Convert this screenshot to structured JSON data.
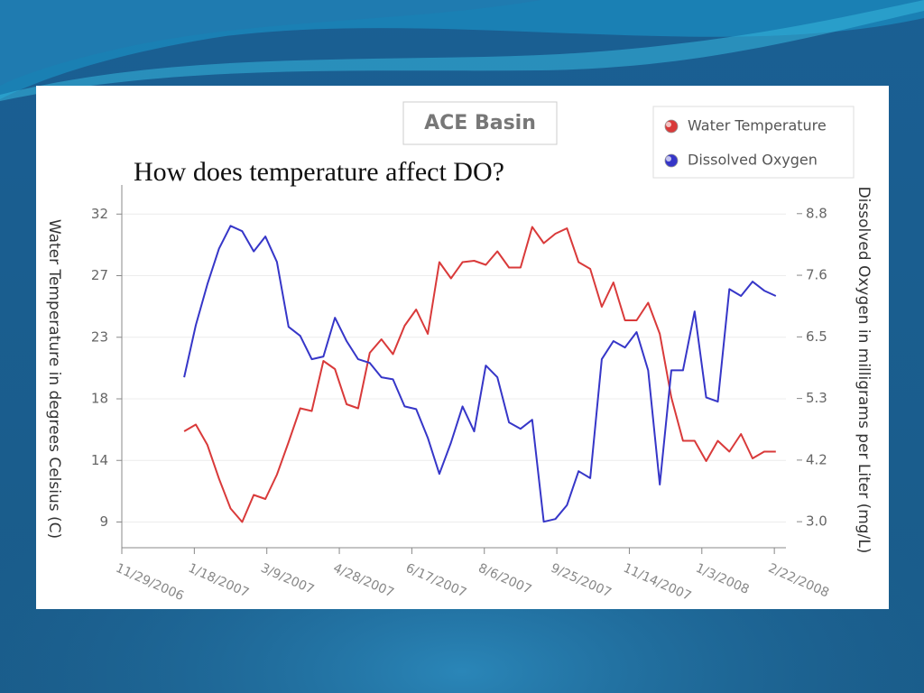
{
  "chart_data": {
    "type": "line",
    "title": "ACE Basin",
    "annotation": "How does temperature affect DO?",
    "y_label": "Water Temperature in degrees Celsius (C)",
    "y2_label": "Dissolved Oxygen in milligrams per Liter (mg/L)",
    "legend": "top-right",
    "grid": true,
    "x": [
      "2007-01-11",
      "2007-01-19",
      "2007-01-27",
      "2007-02-04",
      "2007-02-12",
      "2007-02-20",
      "2007-02-28",
      "2007-03-08",
      "2007-03-16",
      "2007-03-24",
      "2007-04-01",
      "2007-04-09",
      "2007-04-17",
      "2007-04-25",
      "2007-05-03",
      "2007-05-11",
      "2007-05-19",
      "2007-05-27",
      "2007-06-04",
      "2007-06-12",
      "2007-06-20",
      "2007-06-28",
      "2007-07-06",
      "2007-07-14",
      "2007-07-22",
      "2007-07-30",
      "2007-08-07",
      "2007-08-15",
      "2007-08-23",
      "2007-08-31",
      "2007-09-08",
      "2007-09-16",
      "2007-09-24",
      "2007-10-02",
      "2007-10-10",
      "2007-10-18",
      "2007-10-26",
      "2007-11-03",
      "2007-11-11",
      "2007-11-19",
      "2007-11-27",
      "2007-12-05",
      "2007-12-13",
      "2007-12-21",
      "2007-12-29",
      "2008-01-06",
      "2008-01-14",
      "2008-01-22",
      "2008-01-30",
      "2008-02-07",
      "2008-02-15",
      "2008-02-23"
    ],
    "xlim": [
      "2006-11-29",
      "2008-03-01"
    ],
    "xticks": [
      {
        "value": "2006-11-29",
        "label": "11/29/2006"
      },
      {
        "value": "2007-01-18",
        "label": "1/18/2007"
      },
      {
        "value": "2007-03-09",
        "label": "3/9/2007"
      },
      {
        "value": "2007-04-28",
        "label": "4/28/2007"
      },
      {
        "value": "2007-06-17",
        "label": "6/17/2007"
      },
      {
        "value": "2007-08-06",
        "label": "8/6/2007"
      },
      {
        "value": "2007-09-25",
        "label": "9/25/2007"
      },
      {
        "value": "2007-11-14",
        "label": "11/14/2007"
      },
      {
        "value": "2008-01-03",
        "label": "1/3/2008"
      },
      {
        "value": "2008-02-22",
        "label": "2/22/2008"
      }
    ],
    "ylim": [
      7.2,
      34
    ],
    "yticks": [
      {
        "value": 9.1,
        "label": "9"
      },
      {
        "value": 13.65,
        "label": "14"
      },
      {
        "value": 18.2,
        "label": "18"
      },
      {
        "value": 22.75,
        "label": "23"
      },
      {
        "value": 27.3,
        "label": "27"
      },
      {
        "value": 31.85,
        "label": "32"
      }
    ],
    "y2lim": [
      2.51,
      9.34
    ],
    "y2ticks": [
      {
        "value": 3.0,
        "label": "3.0"
      },
      {
        "value": 4.16,
        "label": "4.2"
      },
      {
        "value": 5.32,
        "label": "5.3"
      },
      {
        "value": 6.48,
        "label": "6.5"
      },
      {
        "value": 7.64,
        "label": "7.6"
      },
      {
        "value": 8.8,
        "label": "8.8"
      }
    ],
    "series": [
      {
        "name": "Water Temperature",
        "color": "#d93a3a",
        "values": [
          15.8,
          16.3,
          14.8,
          12.3,
          10.1,
          9.1,
          11.1,
          10.8,
          12.6,
          15.0,
          17.5,
          17.3,
          21.0,
          20.4,
          17.8,
          17.5,
          21.6,
          22.6,
          21.5,
          23.6,
          24.8,
          23.0,
          28.3,
          27.1,
          28.3,
          28.4,
          28.1,
          29.1,
          27.9,
          27.9,
          30.9,
          29.7,
          30.4,
          30.8,
          28.3,
          27.8,
          25.0,
          26.8,
          24.0,
          24.0,
          25.3,
          23.0,
          18.3,
          15.1,
          15.1,
          13.6,
          15.1,
          14.3,
          15.6,
          13.8,
          14.3,
          14.3
        ]
      },
      {
        "name": "Dissolved Oxygen",
        "color": "#3636c8",
        "axis": "y2",
        "values": [
          5.72,
          6.7,
          7.47,
          8.14,
          8.57,
          8.47,
          8.09,
          8.37,
          7.89,
          6.67,
          6.5,
          6.06,
          6.11,
          6.84,
          6.4,
          6.06,
          5.99,
          5.72,
          5.68,
          5.17,
          5.12,
          4.58,
          3.9,
          4.49,
          5.17,
          4.7,
          5.94,
          5.72,
          4.87,
          4.75,
          4.92,
          3.0,
          3.05,
          3.31,
          3.95,
          3.82,
          6.06,
          6.4,
          6.28,
          6.57,
          5.85,
          3.7,
          5.85,
          5.85,
          6.96,
          5.34,
          5.26,
          7.38,
          7.25,
          7.52,
          7.35,
          7.25
        ]
      }
    ]
  }
}
